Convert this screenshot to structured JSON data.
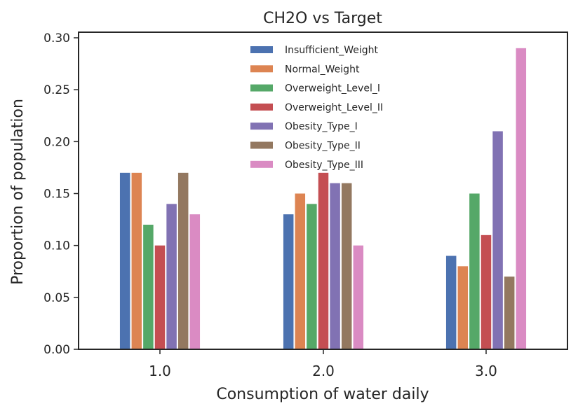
{
  "chart_data": {
    "type": "bar",
    "title": "CH2O vs Target",
    "xlabel": "Consumption of water daily",
    "ylabel": "Proportion of population",
    "categories": [
      "1.0",
      "2.0",
      "3.0"
    ],
    "ylim": [
      0,
      0.3
    ],
    "yticks": [
      "0.00",
      "0.05",
      "0.10",
      "0.15",
      "0.20",
      "0.25",
      "0.30"
    ],
    "grid": false,
    "legend_position": "top-center",
    "series": [
      {
        "name": "Insufficient_Weight",
        "color": "#4c72b0",
        "values": [
          0.17,
          0.13,
          0.09
        ]
      },
      {
        "name": "Normal_Weight",
        "color": "#dd8452",
        "values": [
          0.17,
          0.15,
          0.08
        ]
      },
      {
        "name": "Overweight_Level_I",
        "color": "#55a868",
        "values": [
          0.12,
          0.14,
          0.15
        ]
      },
      {
        "name": "Overweight_Level_II",
        "color": "#c44e52",
        "values": [
          0.1,
          0.17,
          0.11
        ]
      },
      {
        "name": "Obesity_Type_I",
        "color": "#8172b3",
        "values": [
          0.14,
          0.16,
          0.21
        ]
      },
      {
        "name": "Obesity_Type_II",
        "color": "#937860",
        "values": [
          0.17,
          0.16,
          0.07
        ]
      },
      {
        "name": "Obesity_Type_III",
        "color": "#da8bc3",
        "values": [
          0.13,
          0.1,
          0.29
        ]
      }
    ]
  }
}
